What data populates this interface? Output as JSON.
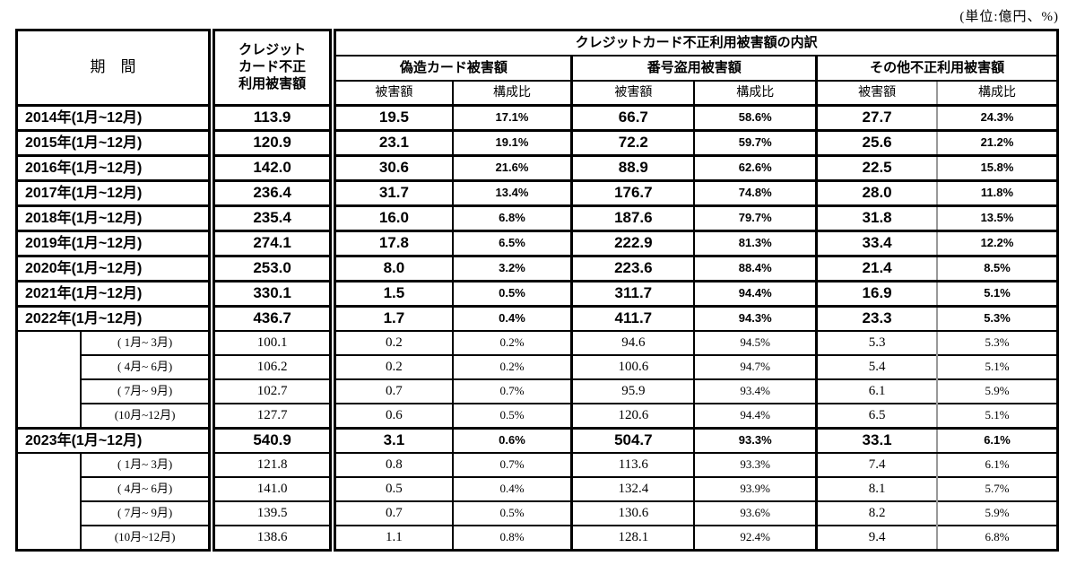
{
  "page": {
    "unit_note": "(単位:億円、%)"
  },
  "colors": {
    "border": "#000000",
    "light_divider": "#999999",
    "background": "#ffffff",
    "text": "#000000"
  },
  "chart_data": {
    "type": "table",
    "title": "クレジットカード不正利用被害額の内訳",
    "unit": "億円、%",
    "header": {
      "period": "期　間",
      "total": "クレジット\nカード不正\n利用被害額",
      "breakdown_title": "クレジットカード不正利用被害額の内訳",
      "group_counterfeit": "偽造カード被害額",
      "group_stolen_number": "番号盗用被害額",
      "group_other": "その他不正利用被害額",
      "amount": "被害額",
      "ratio": "構成比"
    },
    "rows": [
      {
        "type": "annual",
        "period": "2014年(1月~12月)",
        "total": "113.9",
        "counterfeit_amount": "19.5",
        "counterfeit_ratio": "17.1%",
        "stolen_amount": "66.7",
        "stolen_ratio": "58.6%",
        "other_amount": "27.7",
        "other_ratio": "24.3%"
      },
      {
        "type": "annual",
        "period": "2015年(1月~12月)",
        "total": "120.9",
        "counterfeit_amount": "23.1",
        "counterfeit_ratio": "19.1%",
        "stolen_amount": "72.2",
        "stolen_ratio": "59.7%",
        "other_amount": "25.6",
        "other_ratio": "21.2%"
      },
      {
        "type": "annual",
        "period": "2016年(1月~12月)",
        "total": "142.0",
        "counterfeit_amount": "30.6",
        "counterfeit_ratio": "21.6%",
        "stolen_amount": "88.9",
        "stolen_ratio": "62.6%",
        "other_amount": "22.5",
        "other_ratio": "15.8%"
      },
      {
        "type": "annual",
        "period": "2017年(1月~12月)",
        "total": "236.4",
        "counterfeit_amount": "31.7",
        "counterfeit_ratio": "13.4%",
        "stolen_amount": "176.7",
        "stolen_ratio": "74.8%",
        "other_amount": "28.0",
        "other_ratio": "11.8%"
      },
      {
        "type": "annual",
        "period": "2018年(1月~12月)",
        "total": "235.4",
        "counterfeit_amount": "16.0",
        "counterfeit_ratio": "6.8%",
        "stolen_amount": "187.6",
        "stolen_ratio": "79.7%",
        "other_amount": "31.8",
        "other_ratio": "13.5%"
      },
      {
        "type": "annual",
        "period": "2019年(1月~12月)",
        "total": "274.1",
        "counterfeit_amount": "17.8",
        "counterfeit_ratio": "6.5%",
        "stolen_amount": "222.9",
        "stolen_ratio": "81.3%",
        "other_amount": "33.4",
        "other_ratio": "12.2%"
      },
      {
        "type": "annual",
        "period": "2020年(1月~12月)",
        "total": "253.0",
        "counterfeit_amount": "8.0",
        "counterfeit_ratio": "3.2%",
        "stolen_amount": "223.6",
        "stolen_ratio": "88.4%",
        "other_amount": "21.4",
        "other_ratio": "8.5%"
      },
      {
        "type": "annual",
        "period": "2021年(1月~12月)",
        "total": "330.1",
        "counterfeit_amount": "1.5",
        "counterfeit_ratio": "0.5%",
        "stolen_amount": "311.7",
        "stolen_ratio": "94.4%",
        "other_amount": "16.9",
        "other_ratio": "5.1%"
      },
      {
        "type": "annual",
        "period": "2022年(1月~12月)",
        "total": "436.7",
        "counterfeit_amount": "1.7",
        "counterfeit_ratio": "0.4%",
        "stolen_amount": "411.7",
        "stolen_ratio": "94.3%",
        "other_amount": "23.3",
        "other_ratio": "5.3%"
      },
      {
        "type": "quarter",
        "period": "( 1月~ 3月)",
        "total": "100.1",
        "counterfeit_amount": "0.2",
        "counterfeit_ratio": "0.2%",
        "stolen_amount": "94.6",
        "stolen_ratio": "94.5%",
        "other_amount": "5.3",
        "other_ratio": "5.3%"
      },
      {
        "type": "quarter",
        "period": "( 4月~ 6月)",
        "total": "106.2",
        "counterfeit_amount": "0.2",
        "counterfeit_ratio": "0.2%",
        "stolen_amount": "100.6",
        "stolen_ratio": "94.7%",
        "other_amount": "5.4",
        "other_ratio": "5.1%"
      },
      {
        "type": "quarter",
        "period": "( 7月~ 9月)",
        "total": "102.7",
        "counterfeit_amount": "0.7",
        "counterfeit_ratio": "0.7%",
        "stolen_amount": "95.9",
        "stolen_ratio": "93.4%",
        "other_amount": "6.1",
        "other_ratio": "5.9%"
      },
      {
        "type": "quarter",
        "period": "(10月~12月)",
        "total": "127.7",
        "counterfeit_amount": "0.6",
        "counterfeit_ratio": "0.5%",
        "stolen_amount": "120.6",
        "stolen_ratio": "94.4%",
        "other_amount": "6.5",
        "other_ratio": "5.1%"
      },
      {
        "type": "annual",
        "period": "2023年(1月~12月)",
        "total": "540.9",
        "counterfeit_amount": "3.1",
        "counterfeit_ratio": "0.6%",
        "stolen_amount": "504.7",
        "stolen_ratio": "93.3%",
        "other_amount": "33.1",
        "other_ratio": "6.1%"
      },
      {
        "type": "quarter",
        "period": "( 1月~ 3月)",
        "total": "121.8",
        "counterfeit_amount": "0.8",
        "counterfeit_ratio": "0.7%",
        "stolen_amount": "113.6",
        "stolen_ratio": "93.3%",
        "other_amount": "7.4",
        "other_ratio": "6.1%"
      },
      {
        "type": "quarter",
        "period": "( 4月~ 6月)",
        "total": "141.0",
        "counterfeit_amount": "0.5",
        "counterfeit_ratio": "0.4%",
        "stolen_amount": "132.4",
        "stolen_ratio": "93.9%",
        "other_amount": "8.1",
        "other_ratio": "5.7%"
      },
      {
        "type": "quarter",
        "period": "( 7月~ 9月)",
        "total": "139.5",
        "counterfeit_amount": "0.7",
        "counterfeit_ratio": "0.5%",
        "stolen_amount": "130.6",
        "stolen_ratio": "93.6%",
        "other_amount": "8.2",
        "other_ratio": "5.9%"
      },
      {
        "type": "quarter",
        "period": "(10月~12月)",
        "total": "138.6",
        "counterfeit_amount": "1.1",
        "counterfeit_ratio": "0.8%",
        "stolen_amount": "128.1",
        "stolen_ratio": "92.4%",
        "other_amount": "9.4",
        "other_ratio": "6.8%"
      }
    ]
  }
}
